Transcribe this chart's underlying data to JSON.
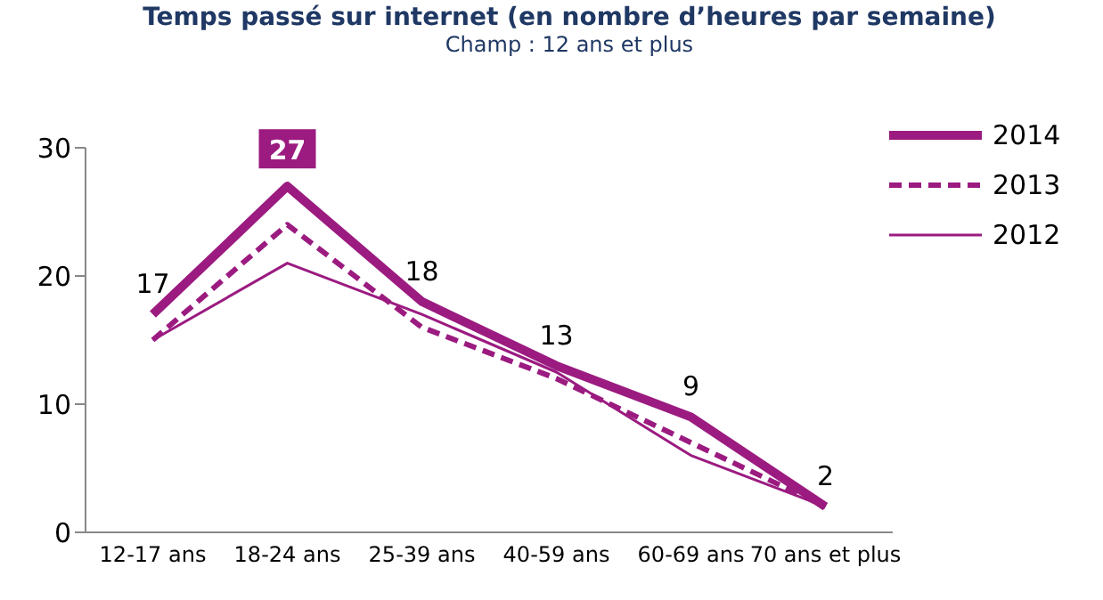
{
  "chart_data": {
    "type": "line",
    "title": "Temps passé sur internet (en nombre d’heures par semaine)",
    "subtitle": "Champ : 12 ans et plus",
    "categories": [
      "12-17 ans",
      "18-24 ans",
      "25-39 ans",
      "40-59 ans",
      "60-69 ans",
      "70 ans et plus"
    ],
    "series": [
      {
        "name": "2014",
        "color": "#9b1b80",
        "line_style": "solid",
        "values": [
          17,
          27,
          18,
          13,
          9,
          2
        ],
        "value_labels": [
          "17",
          "27",
          "18",
          "13",
          "9",
          "2"
        ]
      },
      {
        "name": "2013",
        "color": "#9b1b80",
        "line_style": "dashed",
        "values": [
          15,
          24,
          16,
          12,
          7,
          2
        ]
      },
      {
        "name": "2012",
        "color": "#9b1b80",
        "line_style": "solid",
        "values": [
          15,
          21,
          17,
          12.5,
          6,
          2
        ]
      }
    ],
    "ylim": [
      0,
      30
    ],
    "yticks": [
      0,
      10,
      20,
      30
    ],
    "grid": false,
    "legend": "top right",
    "marker": "none"
  }
}
